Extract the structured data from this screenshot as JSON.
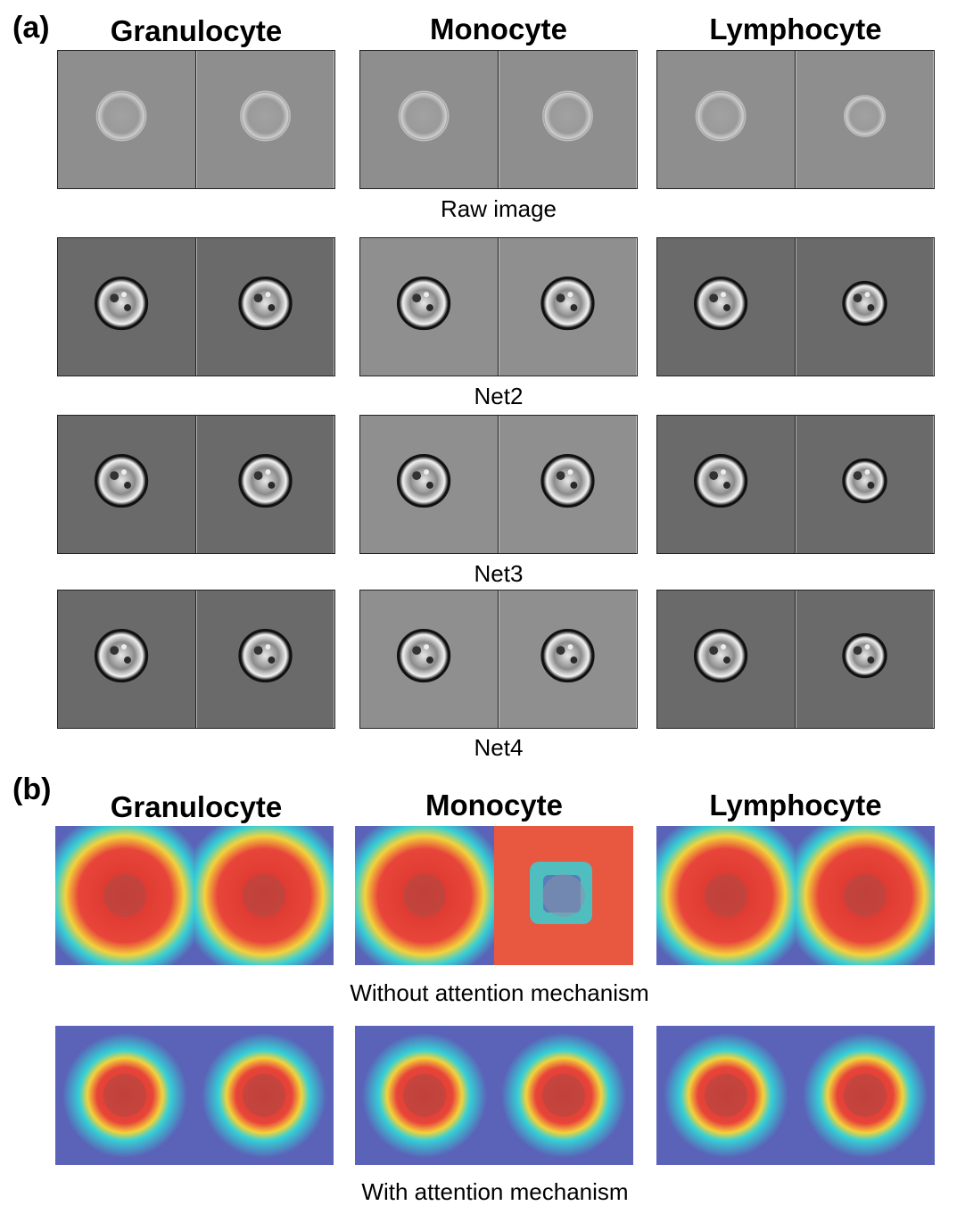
{
  "panel_a": {
    "label": "(a)",
    "columns": [
      "Granulocyte",
      "Monocyte",
      "Lymphocyte"
    ],
    "rows": [
      {
        "caption": "Raw image",
        "style": "raw"
      },
      {
        "caption": "Net2",
        "style": "enhanced"
      },
      {
        "caption": "Net3",
        "style": "enhanced"
      },
      {
        "caption": "Net4",
        "style": "enhanced"
      }
    ]
  },
  "panel_b": {
    "label": "(b)",
    "columns": [
      "Granulocyte",
      "Monocyte",
      "Lymphocyte"
    ],
    "rows": [
      {
        "caption": "Without attention mechanism",
        "style": "heat-diffuse"
      },
      {
        "caption": "With attention mechanism",
        "style": "heat-focused"
      }
    ]
  },
  "colors": {
    "raw_bg": "#8e8e8e",
    "enhanced_bg": "#6a6a6a",
    "heat_low": "#5a63b8",
    "heat_mid": "#35d0d6",
    "heat_high": "#e8453a"
  }
}
